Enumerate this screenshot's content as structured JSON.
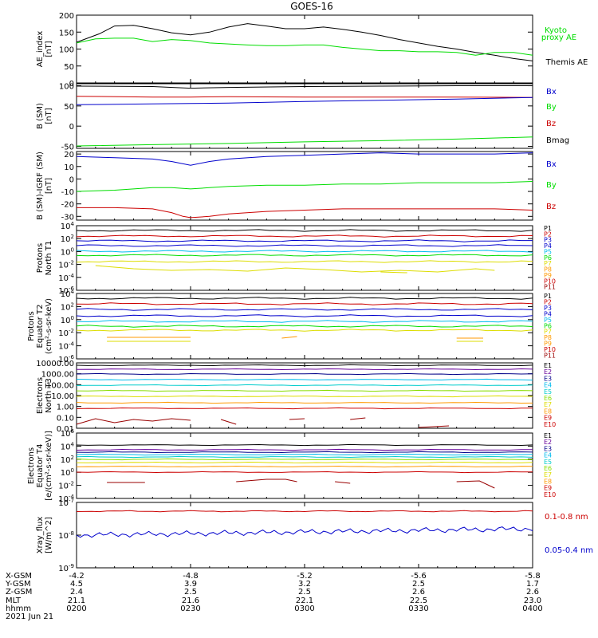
{
  "title": "GOES-16",
  "colors": {
    "black": "#000000",
    "green": "#00dd00",
    "blue": "#0000cc",
    "red": "#cc0000",
    "cyan": "#00bbee",
    "yellow": "#dddd00",
    "orange": "#ff9900",
    "purple": "#660099",
    "navy": "#000088",
    "teal": "#00cccc",
    "darkred": "#990000",
    "lime": "#88dd00"
  },
  "chart_data": [
    {
      "type": "line",
      "ylabel": [
        "AE_index",
        "[nT]"
      ],
      "ylim": [
        0,
        200
      ],
      "yticks": [
        "0",
        "50",
        "100",
        "150",
        "200"
      ],
      "legend": [
        {
          "text": "Kyoto",
          "color": "#00dd00"
        },
        {
          "text": "proxy AE",
          "color": "#00dd00"
        },
        {
          "text": "Themis AE",
          "color": "#000000"
        }
      ],
      "series": [
        {
          "name": "Themis AE",
          "color": "#000000",
          "x": [
            0,
            6,
            10,
            15,
            20,
            25,
            30,
            35,
            40,
            45,
            50,
            55,
            60,
            65,
            70,
            75,
            80,
            85,
            90,
            95,
            100,
            105,
            110,
            115,
            120
          ],
          "y": [
            120,
            145,
            168,
            170,
            160,
            148,
            142,
            150,
            165,
            175,
            168,
            160,
            160,
            165,
            158,
            150,
            140,
            128,
            118,
            108,
            100,
            90,
            82,
            72,
            65
          ]
        },
        {
          "name": "Kyoto proxy AE",
          "color": "#00dd00",
          "x": [
            0,
            5,
            10,
            15,
            20,
            25,
            30,
            35,
            40,
            45,
            50,
            55,
            60,
            65,
            70,
            75,
            80,
            85,
            90,
            95,
            100,
            105,
            110,
            115,
            120
          ],
          "y": [
            118,
            130,
            132,
            132,
            122,
            128,
            125,
            118,
            115,
            112,
            110,
            110,
            112,
            112,
            105,
            100,
            95,
            95,
            92,
            92,
            90,
            82,
            90,
            90,
            82
          ]
        }
      ]
    },
    {
      "type": "line",
      "ylabel": [
        "B (SM)",
        "[nT]"
      ],
      "ylim": [
        -55,
        105
      ],
      "ytickvals": [
        -50,
        0,
        50,
        100
      ],
      "yticks": [
        "-50",
        "0",
        "50",
        "100"
      ],
      "legend": [
        {
          "text": "Bx",
          "color": "#0000cc"
        },
        {
          "text": "By",
          "color": "#00dd00"
        },
        {
          "text": "Bz",
          "color": "#cc0000"
        },
        {
          "text": "Bmag",
          "color": "#000000"
        }
      ],
      "series": [
        {
          "name": "Bmag",
          "color": "#000000",
          "x": [
            0,
            20,
            30,
            40,
            60,
            80,
            100,
            120
          ],
          "y": [
            99,
            98,
            94,
            96,
            98,
            99,
            100,
            100
          ]
        },
        {
          "name": "Bz",
          "color": "#cc0000",
          "x": [
            0,
            20,
            30,
            40,
            60,
            80,
            100,
            120
          ],
          "y": [
            74,
            72,
            72,
            73,
            72,
            72,
            72,
            71
          ]
        },
        {
          "name": "Bx",
          "color": "#0000cc",
          "x": [
            0,
            20,
            30,
            40,
            60,
            80,
            100,
            120
          ],
          "y": [
            53,
            55,
            56,
            57,
            61,
            64,
            67,
            71
          ]
        },
        {
          "name": "By",
          "color": "#00dd00",
          "x": [
            0,
            20,
            40,
            60,
            80,
            100,
            120
          ],
          "y": [
            -49,
            -46,
            -43,
            -39,
            -36,
            -32,
            -27
          ]
        }
      ]
    },
    {
      "type": "line",
      "ylabel": [
        "B (SM)-IGRF (SM)",
        "[nT]"
      ],
      "ylim": [
        -33,
        22
      ],
      "ytickvals": [
        -30,
        -20,
        -10,
        0,
        10,
        20
      ],
      "yticks": [
        "-30",
        "-20",
        "-10",
        "0",
        "10",
        "20"
      ],
      "legend": [
        {
          "text": "Bx",
          "color": "#0000cc"
        },
        {
          "text": "By",
          "color": "#00dd00"
        },
        {
          "text": "Bz",
          "color": "#cc0000"
        }
      ],
      "series": [
        {
          "name": "Bx",
          "color": "#0000cc",
          "x": [
            0,
            10,
            20,
            25,
            30,
            35,
            40,
            50,
            60,
            70,
            80,
            90,
            100,
            110,
            120
          ],
          "y": [
            18,
            17,
            16,
            14,
            11,
            14,
            16,
            18,
            19,
            20,
            21,
            20,
            20,
            20,
            21
          ]
        },
        {
          "name": "By",
          "color": "#00dd00",
          "x": [
            0,
            10,
            20,
            25,
            30,
            35,
            40,
            50,
            60,
            70,
            80,
            90,
            100,
            110,
            120
          ],
          "y": [
            -10,
            -9,
            -7,
            -7,
            -8,
            -7,
            -6,
            -5,
            -5,
            -4,
            -4,
            -3,
            -3,
            -3,
            -2
          ]
        },
        {
          "name": "Bz",
          "color": "#cc0000",
          "x": [
            0,
            10,
            20,
            25,
            28,
            30,
            35,
            40,
            50,
            60,
            70,
            80,
            90,
            100,
            110,
            120
          ],
          "y": [
            -23,
            -23,
            -24,
            -27,
            -30,
            -31,
            -30,
            -28,
            -26,
            -25,
            -24,
            -24,
            -24,
            -24,
            -24,
            -25
          ]
        }
      ]
    },
    {
      "type": "line",
      "log": true,
      "ylabel": [
        "Protons",
        "North T1"
      ],
      "yticks": [
        "10^4",
        "10^2",
        "10^0",
        "10^-2",
        "10^-4",
        "10^-6"
      ],
      "legend": [
        "P1",
        "P2",
        "P3",
        "P4",
        "P5",
        "P6",
        "P7",
        "P8",
        "P9",
        "P10",
        "P11"
      ]
    },
    {
      "type": "line",
      "log": true,
      "ylabel": [
        "Protons",
        "Equator T2",
        "(cm²-s-sr-keV)"
      ],
      "yticks": [
        "10^4",
        "10^2",
        "10^0",
        "10^-2",
        "10^-4",
        "10^-6"
      ],
      "legend": [
        "P1",
        "P2",
        "P3",
        "P4",
        "P5",
        "P6",
        "P7",
        "P8",
        "P9",
        "P10",
        "P11"
      ]
    },
    {
      "type": "line",
      "log": true,
      "ylabel": [
        "Electrons",
        "North T3"
      ],
      "yticks": [
        "10000.00",
        "1000.00",
        "100.00",
        "10.00",
        "1.00",
        "0.10",
        "0.01"
      ],
      "legend": [
        "E1",
        "E2",
        "E3",
        "E4",
        "E5",
        "E6",
        "E7",
        "E8",
        "E9",
        "E10"
      ]
    },
    {
      "type": "line",
      "log": true,
      "ylabel": [
        "Electrons",
        "Equator T4",
        "[e/(cm²-s-sr-keV)]"
      ],
      "yticks": [
        "10^6",
        "10^4",
        "10^2",
        "10^0",
        "10^-2",
        "10^-4"
      ],
      "legend": [
        "E1",
        "E2",
        "E3",
        "E4",
        "E5",
        "E6",
        "E7",
        "E8",
        "E9",
        "E10"
      ]
    },
    {
      "type": "line",
      "log": true,
      "ylabel": [
        "Xray_flux",
        "[W/m^2]"
      ],
      "yticks": [
        "10^-7",
        "10^-8",
        "10^-9"
      ],
      "legend": [
        {
          "text": "0.1-0.8 nm",
          "color": "#cc0000"
        },
        {
          "text": "0.05-0.4 nm",
          "color": "#0000cc"
        }
      ]
    }
  ],
  "xaxis": {
    "rows": [
      {
        "label": "X-GSM",
        "values": [
          "-4.2",
          "-4.8",
          "-5.2",
          "-5.6",
          "-5.8"
        ]
      },
      {
        "label": "Y-GSM",
        "values": [
          "4.5",
          "3.9",
          "3.2",
          "2.5",
          "1.7"
        ]
      },
      {
        "label": "Z-GSM",
        "values": [
          "2.4",
          "2.5",
          "2.5",
          "2.6",
          "2.6"
        ]
      },
      {
        "label": "MLT",
        "values": [
          "21.1",
          "21.6",
          "22.1",
          "22.5",
          "23.0"
        ]
      },
      {
        "label": "hhmm",
        "values": [
          "0200",
          "0230",
          "0300",
          "0330",
          "0400"
        ]
      }
    ],
    "date": "2021 Jun 21"
  }
}
